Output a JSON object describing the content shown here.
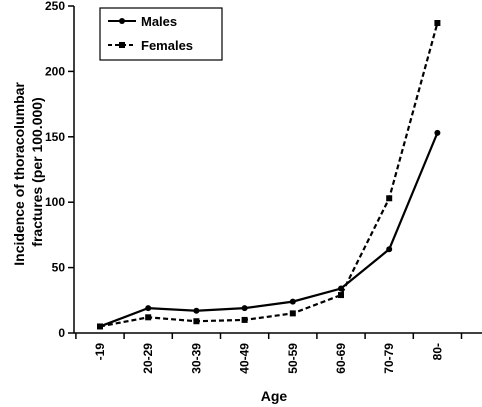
{
  "chart_data": {
    "type": "line",
    "categories": [
      "-19",
      "20-29",
      "30-39",
      "40-49",
      "50-59",
      "60-69",
      "70-79",
      "80-"
    ],
    "series": [
      {
        "name": "Males",
        "values": [
          5,
          19,
          17,
          19,
          24,
          34,
          64,
          153
        ],
        "color": "#000000",
        "dash": "solid",
        "marker": "circle"
      },
      {
        "name": "Females",
        "values": [
          5,
          12,
          9,
          10,
          15,
          29,
          103,
          237
        ],
        "color": "#000000",
        "dash": "dashed",
        "marker": "square"
      }
    ],
    "xlabel": "Age",
    "ylabel": "Incidence of thoracolumbar fractures (per 100.000)",
    "ylabel_lines": [
      "Incidence of thoracolumbar",
      "fractures (per 100.000)"
    ],
    "ylim": [
      0,
      250
    ],
    "yticks": [
      0,
      50,
      100,
      150,
      200,
      250
    ],
    "legend": "top-left",
    "grid": false
  }
}
